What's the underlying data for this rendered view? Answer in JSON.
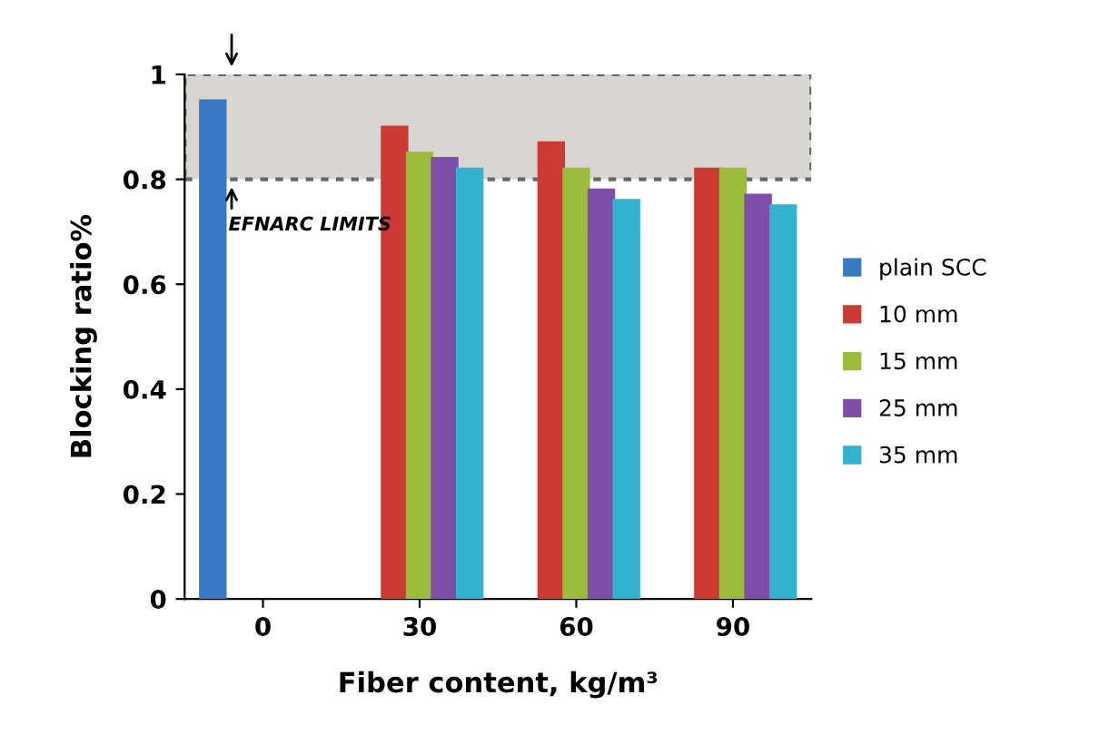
{
  "chart_data": {
    "type": "bar",
    "xlabel": "Fiber content, kg/m³",
    "ylabel": "Blocking ratio%",
    "categories": [
      "0",
      "30",
      "60",
      "90"
    ],
    "series": [
      {
        "name": "plain SCC",
        "color": "#3a78c4",
        "values": [
          0.95,
          null,
          null,
          null
        ]
      },
      {
        "name": "10 mm",
        "color": "#cc3b33",
        "values": [
          null,
          0.9,
          0.87,
          0.82
        ]
      },
      {
        "name": "15 mm",
        "color": "#9bbb3b",
        "values": [
          null,
          0.85,
          0.82,
          0.82
        ]
      },
      {
        "name": "25 mm",
        "color": "#7e4fa8",
        "values": [
          null,
          0.84,
          0.78,
          0.77
        ]
      },
      {
        "name": "35 mm",
        "color": "#31b3d0",
        "values": [
          null,
          0.82,
          0.76,
          0.75
        ]
      }
    ],
    "ylim": [
      0,
      1
    ],
    "yticks": [
      0,
      0.2,
      0.4,
      0.6,
      0.8,
      1
    ],
    "bands": [
      {
        "axis": "y",
        "from": 0.8,
        "to": 1,
        "label": "EFNARC LIMITS",
        "color": "#d9d5d0"
      }
    ],
    "grid": false,
    "legend": "right"
  }
}
